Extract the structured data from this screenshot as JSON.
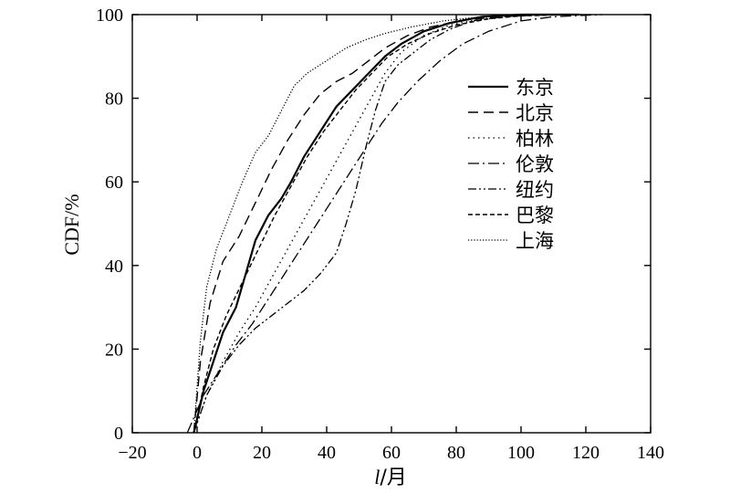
{
  "chart_data": {
    "type": "line",
    "title": "",
    "xlabel": "l/月",
    "xlabel_var": "l",
    "xlabel_unit": "/月",
    "ylabel": "CDF/%",
    "xlim": [
      -20,
      140
    ],
    "ylim": [
      0,
      100
    ],
    "xticks": [
      -20,
      0,
      20,
      40,
      60,
      80,
      100,
      120,
      140
    ],
    "yticks": [
      0,
      20,
      40,
      60,
      80,
      100
    ],
    "xtick_labels": [
      "−20",
      "0",
      "20",
      "40",
      "60",
      "80",
      "100",
      "120",
      "140"
    ],
    "ytick_labels": [
      "0",
      "20",
      "40",
      "60",
      "80",
      "100"
    ],
    "grid": false,
    "legend_position": "center-right",
    "series": [
      {
        "name": "东京",
        "style": "solid",
        "x": [
          -1,
          2,
          5,
          8,
          12,
          15,
          18,
          22,
          26,
          29,
          33,
          38,
          43,
          48,
          53,
          58,
          63,
          70,
          78,
          88,
          100,
          118
        ],
        "y": [
          0,
          10,
          17,
          24,
          30,
          38,
          46,
          52,
          56,
          60,
          66,
          72,
          78,
          82,
          86,
          90,
          93,
          96,
          98,
          99.5,
          100,
          100
        ]
      },
      {
        "name": "北京",
        "style": "dashed",
        "x": [
          -1,
          1,
          4,
          8,
          13,
          18,
          23,
          28,
          33,
          38,
          43,
          48,
          53,
          58,
          65,
          72,
          82,
          95,
          110
        ],
        "y": [
          0,
          17,
          31,
          41,
          47,
          55,
          63,
          70,
          76,
          81,
          84,
          86,
          89,
          92,
          95,
          97,
          98.7,
          99.6,
          100
        ]
      },
      {
        "name": "柏林",
        "style": "dotted",
        "x": [
          -1,
          3,
          8,
          13,
          18,
          23,
          28,
          33,
          38,
          43,
          48,
          53,
          58,
          63,
          70,
          78,
          88,
          100,
          115
        ],
        "y": [
          0,
          9,
          17,
          24,
          30,
          37,
          44,
          51,
          58,
          65,
          72,
          79,
          86,
          91,
          95,
          97.5,
          99,
          99.8,
          100
        ]
      },
      {
        "name": "伦敦",
        "style": "dashdot",
        "x": [
          -3,
          2,
          7,
          12,
          17,
          22,
          27,
          32,
          37,
          42,
          47,
          52,
          57,
          62,
          68,
          75,
          82,
          90,
          100,
          110,
          125
        ],
        "y": [
          0,
          9,
          15,
          21,
          26,
          32,
          38,
          44,
          50,
          56,
          62,
          68,
          74,
          79,
          84,
          89,
          93,
          96,
          98.5,
          99.5,
          100
        ]
      },
      {
        "name": "纽约",
        "style": "dashdotdot",
        "x": [
          -1,
          3,
          8,
          13,
          18,
          23,
          28,
          33,
          38,
          43,
          46,
          49,
          52,
          55,
          58,
          62,
          67,
          72,
          78,
          85,
          95,
          108,
          122
        ],
        "y": [
          0,
          9,
          16,
          21,
          25,
          28,
          31,
          34,
          38,
          43,
          50,
          58,
          68,
          77,
          84,
          88,
          91,
          94,
          96.5,
          98.5,
          99.5,
          100,
          100
        ]
      },
      {
        "name": "巴黎",
        "style": "shortdash",
        "x": [
          -1,
          2,
          5,
          9,
          14,
          19,
          24,
          29,
          34,
          39,
          44,
          49,
          54,
          59,
          65,
          72,
          80,
          90,
          100,
          115
        ],
        "y": [
          0,
          11,
          20,
          28,
          36,
          44,
          52,
          59,
          66,
          72,
          77,
          82,
          86,
          90,
          93,
          95.5,
          97.5,
          99,
          99.7,
          100
        ]
      },
      {
        "name": "上海",
        "style": "densedotted",
        "x": [
          -1,
          1,
          3,
          6,
          10,
          14,
          18,
          22,
          26,
          30,
          34,
          40,
          46,
          52,
          58,
          66,
          76,
          88,
          100,
          115
        ],
        "y": [
          0,
          22,
          35,
          44,
          52,
          60,
          67,
          71,
          77,
          83,
          86,
          89,
          92,
          94,
          95.5,
          97,
          98.5,
          99.5,
          100,
          100
        ]
      }
    ]
  },
  "colors": {
    "line": "#000000",
    "background": "#ffffff"
  }
}
